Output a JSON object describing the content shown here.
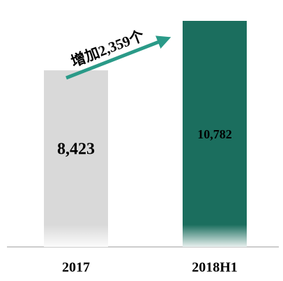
{
  "chart_data": {
    "type": "bar",
    "categories": [
      "2017",
      "2018H1"
    ],
    "values": [
      8423,
      10782
    ],
    "value_labels": [
      "8,423",
      "10,782"
    ],
    "colors": [
      "#d9d9d9",
      "#1b6e5e"
    ],
    "annotation": "增加2,359个"
  }
}
